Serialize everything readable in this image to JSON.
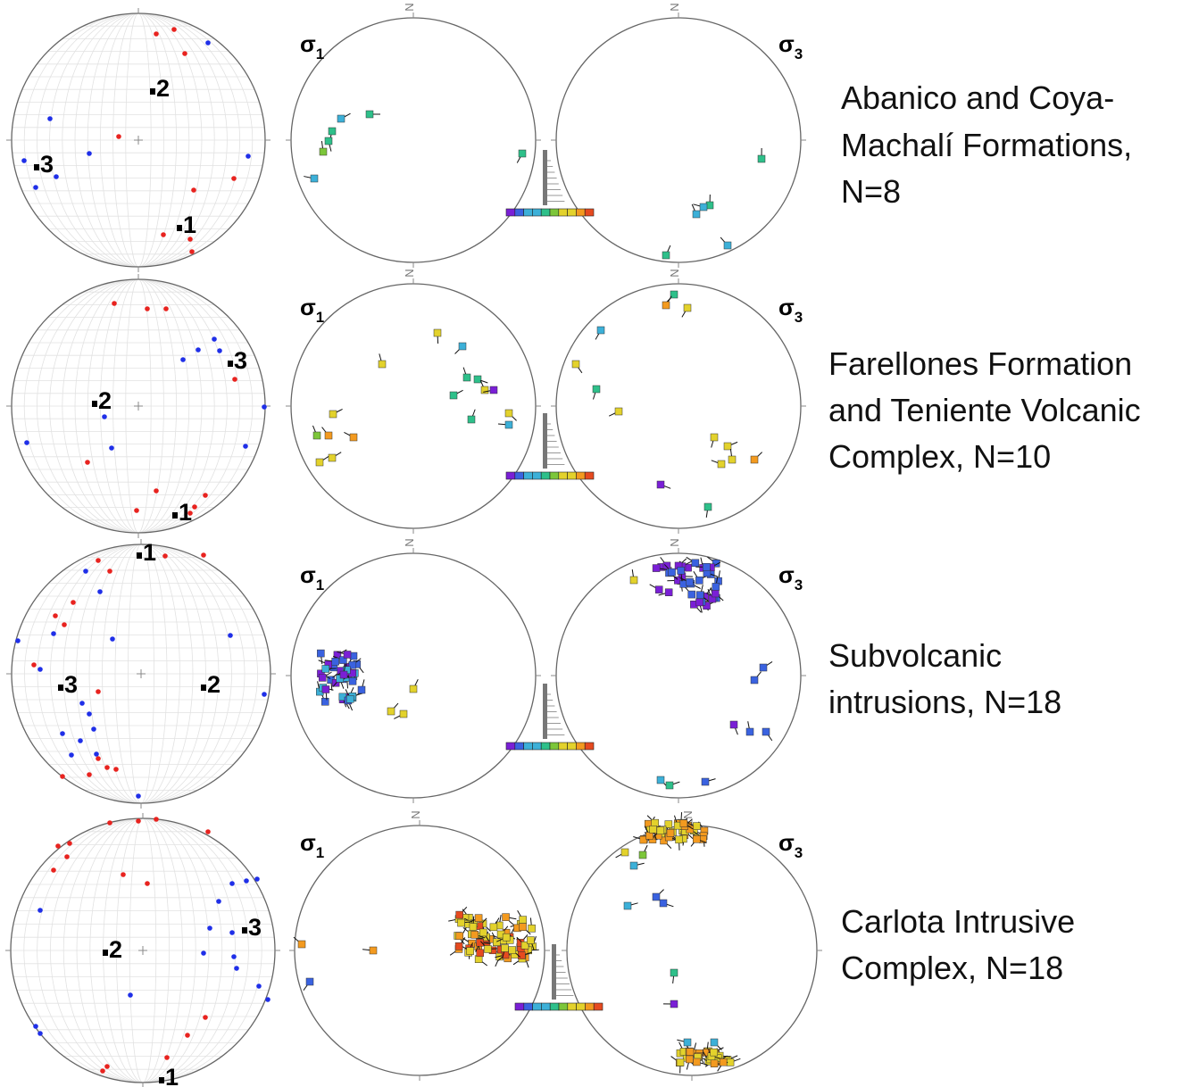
{
  "north_label": "N",
  "sigma_symbol": "σ",
  "sigma_subscripts": [
    "1",
    "3"
  ],
  "axis_labels": [
    "1",
    "2",
    "3"
  ],
  "rows": [
    {
      "description": [
        "Abanico and Coya-",
        "Machalí Formations,",
        "N=8"
      ]
    },
    {
      "description": [
        "Farellones Formation",
        "and Teniente Volcanic",
        "Complex, N=10"
      ]
    },
    {
      "description": [
        "Subvolcanic",
        "intrusions, N=18"
      ]
    },
    {
      "description": [
        "Carlota Intrusive",
        "Complex, N=18"
      ]
    }
  ]
}
